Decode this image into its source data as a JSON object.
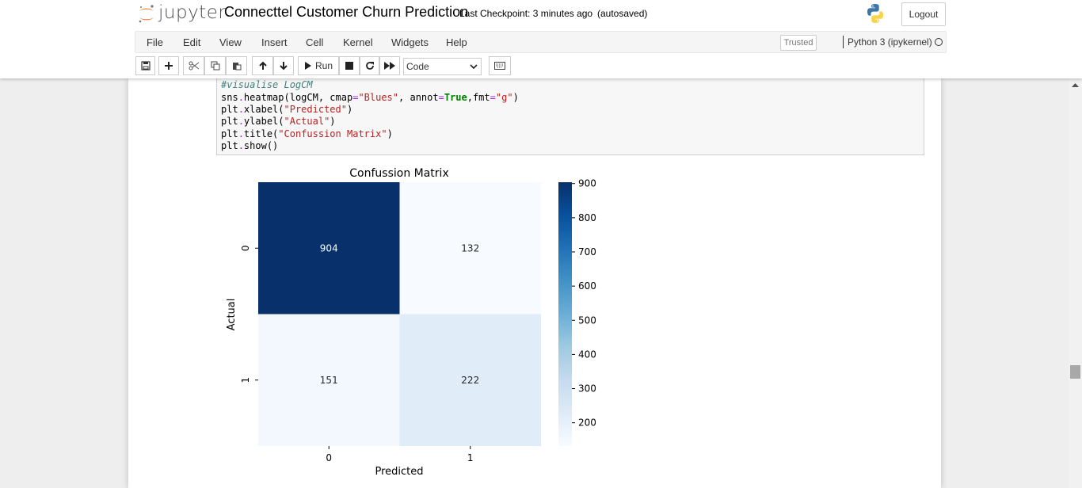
{
  "header": {
    "logo_text": "jupyter",
    "notebook_title": "Connecttel Customer Churn Prediction",
    "checkpoint": "Last Checkpoint: 3 minutes ago",
    "autosave": "(autosaved)",
    "logout_label": "Logout"
  },
  "menubar": {
    "items": [
      "File",
      "Edit",
      "View",
      "Insert",
      "Cell",
      "Kernel",
      "Widgets",
      "Help"
    ],
    "trusted_label": "Trusted",
    "kernel_name": "Python 3 (ipykernel)"
  },
  "toolbar": {
    "buttons": [
      {
        "name": "save-button",
        "icon": "floppy-icon"
      },
      {
        "name": "insert-cell-button",
        "icon": "plus-icon"
      },
      {
        "name": "cut-button",
        "icon": "scissors-icon"
      },
      {
        "name": "copy-button",
        "icon": "copy-icon"
      },
      {
        "name": "paste-button",
        "icon": "paste-icon"
      },
      {
        "name": "move-up-button",
        "icon": "arrow-up-icon"
      },
      {
        "name": "move-down-button",
        "icon": "arrow-down-icon"
      },
      {
        "name": "run-button",
        "icon": "play-icon"
      },
      {
        "name": "interrupt-button",
        "icon": "stop-icon"
      },
      {
        "name": "restart-button",
        "icon": "restart-icon"
      },
      {
        "name": "restart-run-all-button",
        "icon": "fast-forward-icon"
      },
      {
        "name": "command-palette-button",
        "icon": "keyboard-icon"
      }
    ],
    "run_label": "Run",
    "cell_type": "Code"
  },
  "code_cell": {
    "lines": [
      "#visualise LogCM",
      "sns.heatmap(logCM, cmap=\"Blues\", annot=True,fmt=\"g\")",
      "plt.xlabel(\"Predicted\")",
      "plt.ylabel(\"Actual\")",
      "plt.title(\"Confussion Matrix\")",
      "plt.show()"
    ]
  },
  "chart_data": {
    "type": "heatmap",
    "title": "Confussion Matrix",
    "xlabel": "Predicted",
    "ylabel": "Actual",
    "x_categories": [
      "0",
      "1"
    ],
    "y_categories": [
      "0",
      "1"
    ],
    "values": [
      [
        904,
        132
      ],
      [
        151,
        222
      ]
    ],
    "colormap": "Blues",
    "colorbar_ticks": [
      200,
      300,
      400,
      500,
      600,
      700,
      800,
      900
    ],
    "colorbar_range": [
      132,
      904
    ]
  }
}
